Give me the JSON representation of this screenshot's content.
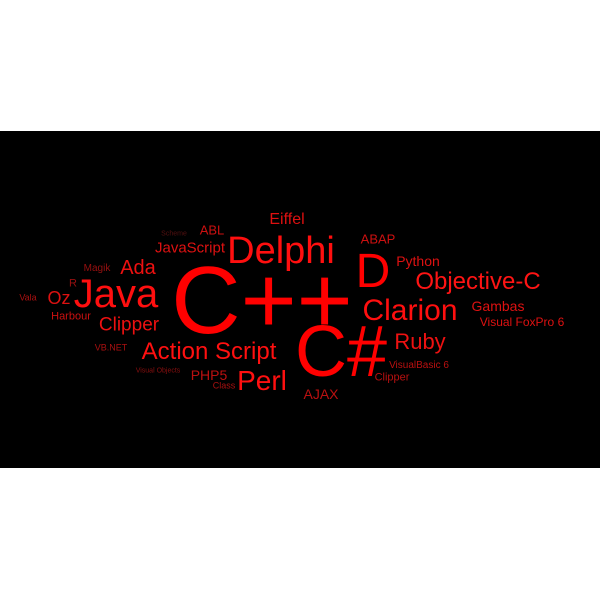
{
  "background_color": "#000000",
  "page_color": "#ffffff",
  "words": [
    {
      "text": "C++",
      "color": "#ff0000"
    },
    {
      "text": "C#",
      "color": "#ff0000"
    },
    {
      "text": "Delphi",
      "color": "#ff0f0f"
    },
    {
      "text": "Java",
      "color": "#ff0f0f"
    },
    {
      "text": "D",
      "color": "#ff0000"
    },
    {
      "text": "Clarion",
      "color": "#ff0f0f"
    },
    {
      "text": "Objective-C",
      "color": "#ff1414"
    },
    {
      "text": "Action Script",
      "color": "#ff1010"
    },
    {
      "text": "Perl",
      "color": "#ff1010"
    },
    {
      "text": "Ruby",
      "color": "#ee1111"
    },
    {
      "text": "Ada",
      "color": "#ee1010"
    },
    {
      "text": "Clipper",
      "color": "#ee1010"
    },
    {
      "text": "Eiffel",
      "color": "#dd1010"
    },
    {
      "text": "JavaScript",
      "color": "#dd1111"
    },
    {
      "text": "ABL",
      "color": "#cc1010"
    },
    {
      "text": "ABAP",
      "color": "#cc1010"
    },
    {
      "text": "Python",
      "color": "#dd1111"
    },
    {
      "text": "Gambas",
      "color": "#dd1111"
    },
    {
      "text": "Visual FoxPro 6",
      "color": "#dd1111"
    },
    {
      "text": "Oz",
      "color": "#dd1111"
    },
    {
      "text": "Harbour",
      "color": "#cc1010"
    },
    {
      "text": "PHP5",
      "color": "#bb1010"
    },
    {
      "text": "AJAX",
      "color": "#bb1010"
    },
    {
      "text": "Clipper",
      "color": "#bb1010"
    },
    {
      "text": "VisualBasic 6",
      "color": "#bb1010"
    },
    {
      "text": "Magik",
      "color": "#991010"
    },
    {
      "text": "R",
      "color": "#991010"
    },
    {
      "text": "Vala",
      "color": "#aa1010"
    },
    {
      "text": "VB.NET",
      "color": "#aa1010"
    },
    {
      "text": "Visual Objects",
      "color": "#880f0f"
    },
    {
      "text": "Class",
      "color": "#aa1010"
    },
    {
      "text": "Scheme",
      "color": "#551010"
    }
  ]
}
